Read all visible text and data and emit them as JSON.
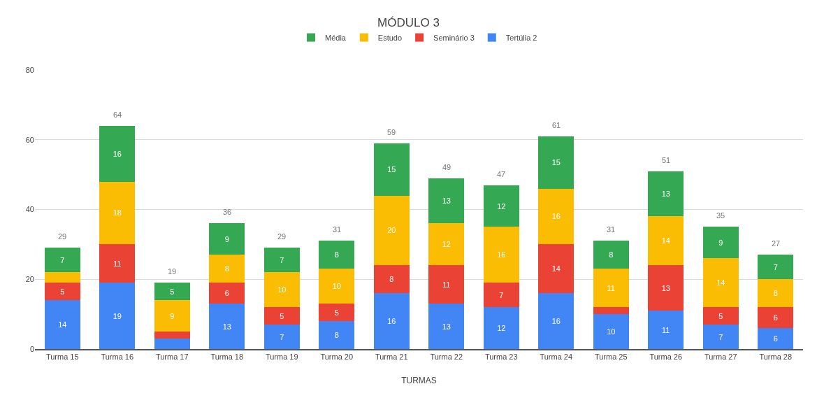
{
  "chart_data": {
    "type": "bar",
    "title": "MÓDULO 3",
    "xlabel": "TURMAS",
    "stacked": true,
    "legend": "top",
    "grid": "y",
    "ylim": [
      0,
      80
    ],
    "yticks": [
      0,
      20,
      40,
      60,
      80
    ],
    "categories": [
      "Turma 15",
      "Turma 16",
      "Turma 17",
      "Turma 18",
      "Turma 19",
      "Turma 20",
      "Turma 21",
      "Turma 22",
      "Turma 23",
      "Turma 24",
      "Turma 25",
      "Turma 26",
      "Turma 27",
      "Turma 28"
    ],
    "series": [
      {
        "name": "Tertúlia 2",
        "color": "#4285f4",
        "values": [
          14,
          19,
          3,
          13,
          7,
          8,
          16,
          13,
          12,
          16,
          10,
          11,
          7,
          6
        ],
        "value_labels": [
          "14",
          "19",
          null,
          "13",
          "7",
          "8",
          "16",
          "13",
          "12",
          "16",
          "10",
          "11",
          "7",
          "6"
        ]
      },
      {
        "name": "Seminário 3",
        "color": "#ea4335",
        "values": [
          5,
          11,
          2,
          6,
          5,
          5,
          8,
          11,
          7,
          14,
          2,
          13,
          5,
          6
        ],
        "value_labels": [
          "5",
          "11",
          null,
          "6",
          "5",
          "5",
          "8",
          "11",
          "7",
          "14",
          null,
          "13",
          "5",
          "6"
        ]
      },
      {
        "name": "Estudo",
        "color": "#fbbc04",
        "values": [
          3,
          18,
          9,
          8,
          10,
          10,
          20,
          12,
          16,
          16,
          11,
          14,
          14,
          8
        ],
        "value_labels": [
          null,
          "18",
          "9",
          "8",
          "10",
          "10",
          "20",
          "12",
          "16",
          "16",
          "11",
          "14",
          "14",
          "8"
        ]
      },
      {
        "name": "Média",
        "color": "#34a853",
        "values": [
          7,
          16,
          5,
          9,
          7,
          8,
          15,
          13,
          12,
          15,
          8,
          13,
          9,
          7
        ],
        "value_labels": [
          "7",
          "16",
          "5",
          "9",
          "7",
          "8",
          "15",
          "13",
          "12",
          "15",
          "8",
          "13",
          "9",
          "7"
        ]
      }
    ],
    "totals": [
      "29",
      "64",
      "19",
      "36",
      "29",
      "31",
      "59",
      "49",
      "47",
      "61",
      "31",
      "51",
      "35",
      "27"
    ]
  }
}
